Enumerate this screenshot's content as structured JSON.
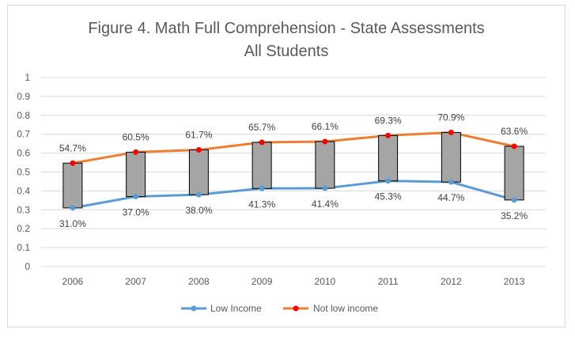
{
  "chart_data": {
    "type": "line",
    "title_line1": "Figure 4. Math Full Comprehension - State Assessments",
    "title_line2": "All Students",
    "categories": [
      "2006",
      "2007",
      "2008",
      "2009",
      "2010",
      "2011",
      "2012",
      "2013"
    ],
    "y_ticks": [
      "0",
      "0.1",
      "0.2",
      "0.3",
      "0.4",
      "0.5",
      "0.6",
      "0.7",
      "0.8",
      "0.9",
      "1"
    ],
    "ylim": [
      0,
      1
    ],
    "grid": true,
    "legend_position": "bottom",
    "series": [
      {
        "name": "Low Income",
        "color": "#5b9bd5",
        "values": [
          0.31,
          0.37,
          0.38,
          0.413,
          0.414,
          0.453,
          0.447,
          0.352
        ],
        "labels": [
          "31.0%",
          "37.0%",
          "38.0%",
          "41.3%",
          "41.4%",
          "45.3%",
          "44.7%",
          "35.2%"
        ]
      },
      {
        "name": "Not low income",
        "color": "#ed7d31",
        "marker_color": "#ff0000",
        "values": [
          0.547,
          0.605,
          0.617,
          0.657,
          0.661,
          0.693,
          0.709,
          0.636
        ],
        "labels": [
          "54.7%",
          "60.5%",
          "61.7%",
          "65.7%",
          "66.1%",
          "69.3%",
          "70.9%",
          "63.6%"
        ]
      }
    ],
    "gap_bars": {
      "fill": "#a5a5a5",
      "stroke": "#000000"
    }
  }
}
